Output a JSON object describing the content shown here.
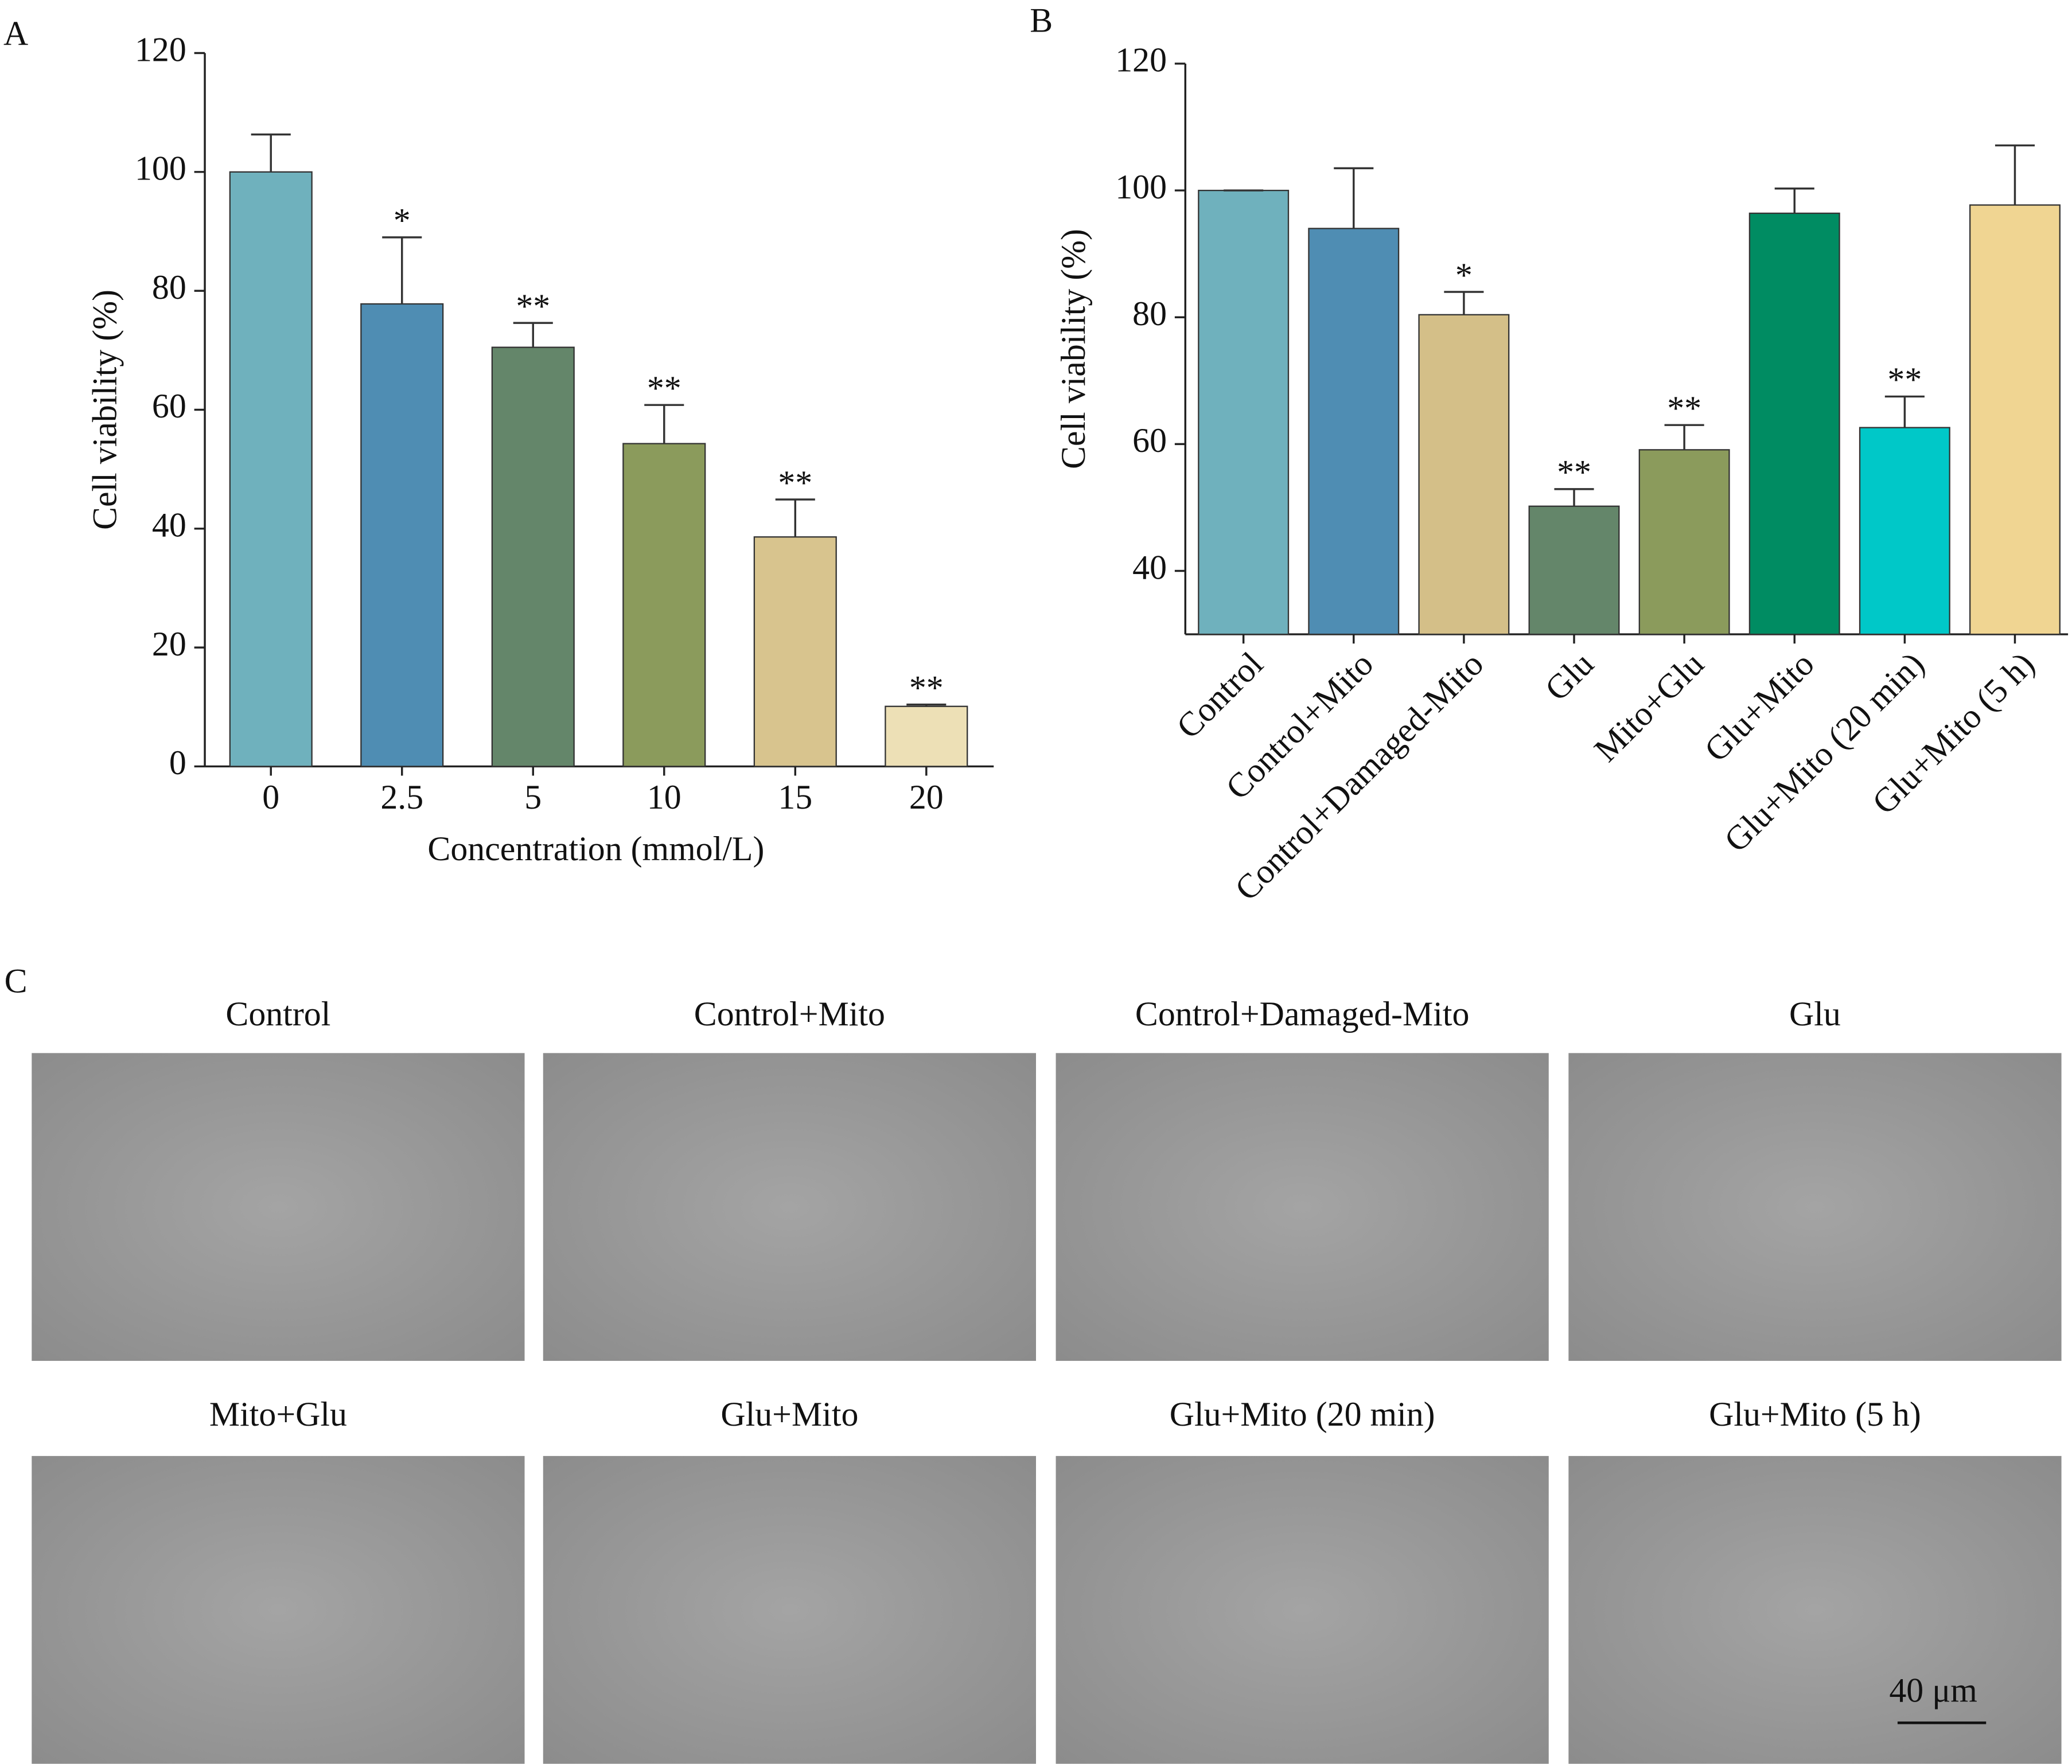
{
  "chart_data": [
    {
      "type": "bar",
      "panel_label": "A",
      "x_label": "Concentration (mmol/L)",
      "y_label": "Cell viability (%)",
      "categories": [
        "0",
        "2.5",
        "5",
        "10",
        "15",
        "20"
      ],
      "values": [
        100,
        77.8,
        70.5,
        54.3,
        38.6,
        10.1
      ],
      "errors": [
        6.3,
        11.2,
        4.1,
        6.5,
        6.3,
        0.3
      ],
      "significance": [
        null,
        "*",
        "**",
        "**",
        "**",
        "**"
      ],
      "colors": [
        "#6fb1bd",
        "#4f8db3",
        "#64866a",
        "#8b9b5c",
        "#d8c48e",
        "#ede0b6"
      ],
      "ylim": [
        0,
        120
      ],
      "yticks": [
        0,
        20,
        40,
        60,
        80,
        100,
        120
      ]
    },
    {
      "type": "bar",
      "panel_label": "B",
      "y_label": "Cell viability (%)",
      "categories": [
        "Control",
        "Control+Mito",
        "Control+Damaged-Mito",
        "Glu",
        "Mito+Glu",
        "Glu+Mito",
        "Glu+Mito (20 min)",
        "Glu+Mito (5 h)"
      ],
      "values": [
        100,
        94,
        80.4,
        50.2,
        59.1,
        96.4,
        62.6,
        97.7
      ],
      "errors": [
        0,
        9.5,
        3.6,
        2.7,
        3.9,
        3.9,
        4.9,
        9.4
      ],
      "significance": [
        null,
        null,
        "*",
        "**",
        "**",
        null,
        "**",
        null
      ],
      "colors": [
        "#6fb1bd",
        "#4f8db3",
        "#d4bf88",
        "#64866a",
        "#8b9b5c",
        "#008c62",
        "#00c8c8",
        "#f0d592"
      ],
      "ylim": [
        30,
        120
      ],
      "yticks": [
        40,
        60,
        80,
        100,
        120
      ]
    }
  ],
  "panel_c": {
    "label": "C",
    "titles": [
      "Control",
      "Control+Mito",
      "Control+Damaged-Mito",
      "Glu",
      "Mito+Glu",
      "Glu+Mito",
      "Glu+Mito (20 min)",
      "Glu+Mito (5 h)"
    ],
    "scale_bar": "40 μm"
  }
}
